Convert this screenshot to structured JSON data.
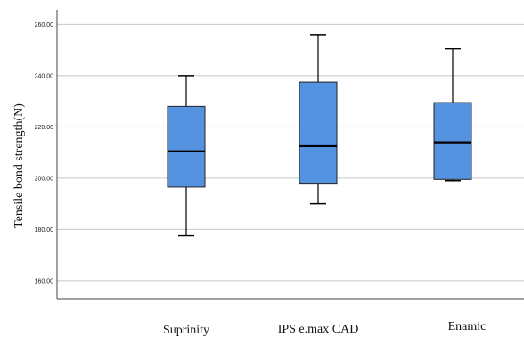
{
  "chart_data": {
    "type": "boxplot",
    "ylabel": "Tensile bond strength(N)",
    "xlabel": "",
    "ylim": [
      153,
      265
    ],
    "yticks": [
      160,
      180,
      200,
      220,
      240,
      260
    ],
    "ytick_labels": [
      "160.00",
      "180.00",
      "200.00",
      "220.00",
      "240.00",
      "260.00"
    ],
    "grid": "horizontal",
    "box_color": "#5592e0",
    "categories": [
      "Suprinity",
      "IPS e.max CAD",
      "Enamic"
    ],
    "series": [
      {
        "category": "Suprinity",
        "min": 177.5,
        "q1": 196.5,
        "median": 210.5,
        "q3": 228,
        "max": 240
      },
      {
        "category": "IPS e.max CAD",
        "min": 190,
        "q1": 198,
        "median": 212.5,
        "q3": 237.5,
        "max": 256
      },
      {
        "category": "Enamic",
        "min": 199,
        "q1": 199.5,
        "median": 214,
        "q3": 229.5,
        "max": 250.5
      }
    ]
  }
}
